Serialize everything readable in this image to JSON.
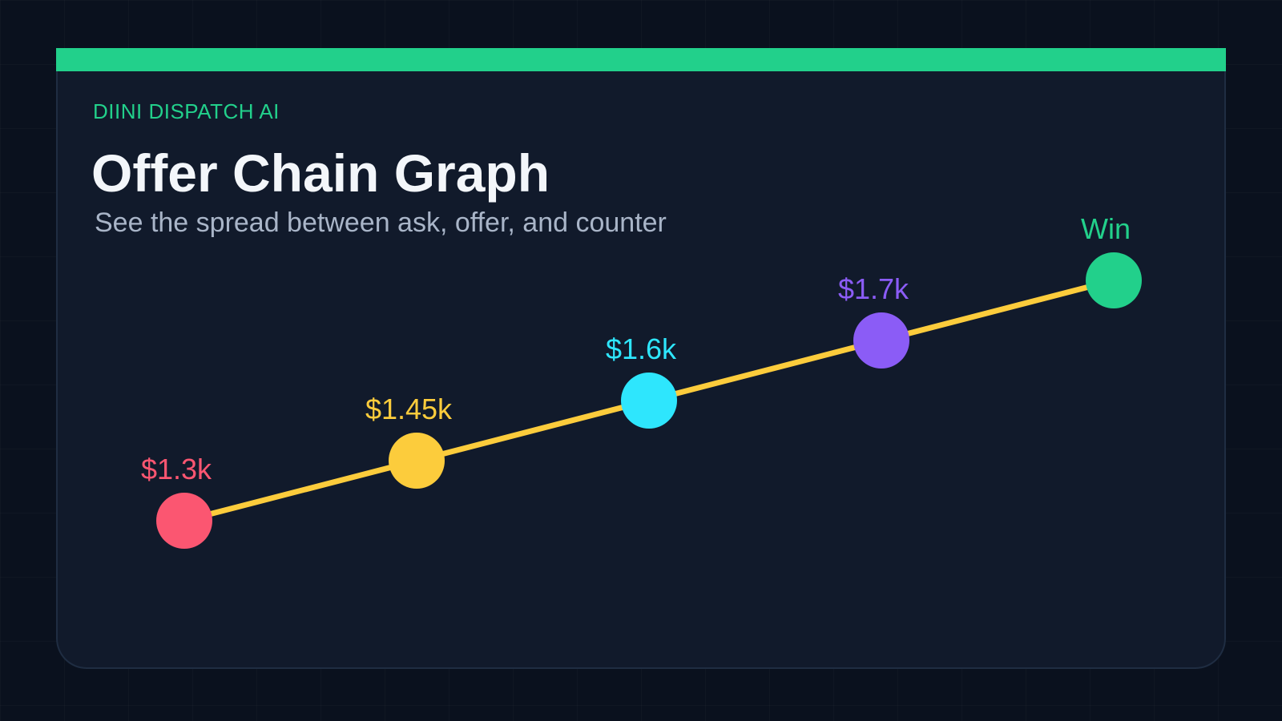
{
  "header": {
    "brand": "DIINI DISPATCH AI",
    "title": "Offer Chain Graph",
    "subtitle": "See the spread between ask, offer, and counter"
  },
  "colors": {
    "accent": "#22d08b",
    "line": "#fccc3c",
    "title": "#f3f6fa",
    "subtitle": "#a9b5c8"
  },
  "chart_data": {
    "type": "line",
    "points": [
      {
        "label": "$1.3k",
        "value": 1300,
        "color": "#fb5671"
      },
      {
        "label": "$1.45k",
        "value": 1450,
        "color": "#fccc3c"
      },
      {
        "label": "$1.6k",
        "value": 1600,
        "color": "#2ee6fd"
      },
      {
        "label": "$1.7k",
        "value": 1700,
        "color": "#8b5cf6"
      },
      {
        "label": "Win",
        "value": null,
        "color": "#22d08b"
      }
    ]
  }
}
